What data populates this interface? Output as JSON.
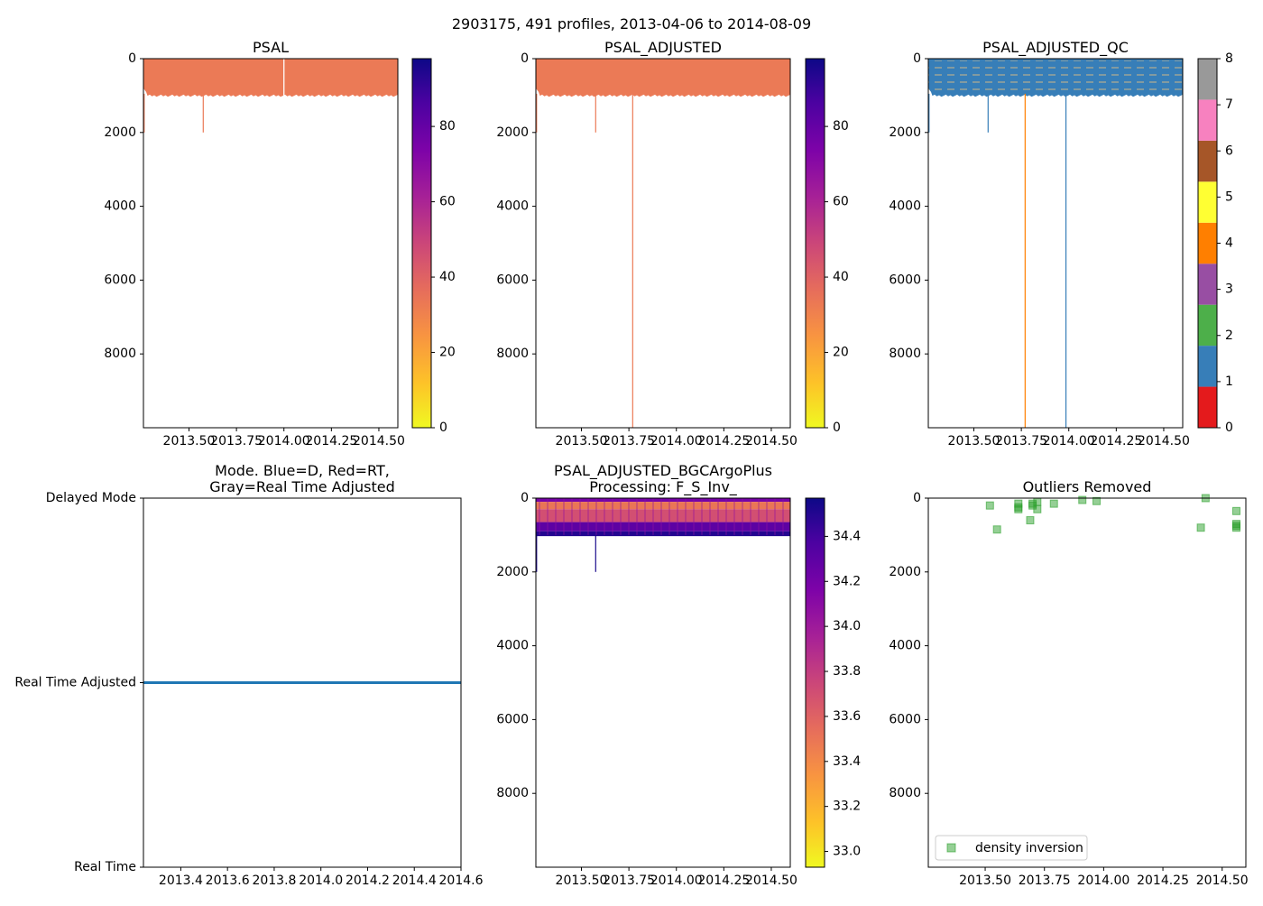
{
  "figure": {
    "suptitle": "2903175, 491 profiles, 2013-04-06 to 2014-08-09"
  },
  "colors": {
    "salmon": "#EB7A56",
    "qc_blue": "#377EB8",
    "qc_orange": "#FF7F00",
    "line_blue": "#1F77B4",
    "outlier_green": "#2CA02C",
    "bgc_navy": "#1A0A8C",
    "bgc_orange": "#F6913B",
    "bgc_purple": "#9512A1"
  },
  "chart_data": [
    {
      "id": "psal",
      "type": "heatmap",
      "title": "PSAL",
      "xlim": [
        2013.26,
        2014.6
      ],
      "ylim": [
        10000,
        0
      ],
      "y_inverted": true,
      "xticks": [
        2013.5,
        2013.75,
        2014.0,
        2014.25,
        2014.5
      ],
      "xtick_labels": [
        "2013.50",
        "2013.75",
        "2014.00",
        "2014.25",
        "2014.50"
      ],
      "yticks": [
        0,
        2000,
        4000,
        6000,
        8000
      ],
      "ytick_labels": [
        "0",
        "2000",
        "4000",
        "6000",
        "8000"
      ],
      "fill": {
        "x_start": 2013.26,
        "x_end": 2014.6,
        "depth_start": 0,
        "depth_end": 1000,
        "color_key": "salmon"
      },
      "spikes": [
        {
          "x": 2013.26,
          "depth_end": 2000,
          "color_key": "salmon"
        },
        {
          "x": 2013.575,
          "depth_end": 2000,
          "color_key": "salmon"
        }
      ],
      "gaps": [
        {
          "x": 2014.0,
          "depth_end": 1000
        }
      ],
      "colorbar": {
        "type": "continuous",
        "cmap": "plasma_r",
        "vmin": 0,
        "vmax": 98,
        "ticks": [
          0,
          20,
          40,
          60,
          80
        ],
        "tick_labels": [
          "0",
          "20",
          "40",
          "60",
          "80"
        ]
      }
    },
    {
      "id": "psal_adj",
      "type": "heatmap",
      "title": "PSAL_ADJUSTED",
      "xlim": [
        2013.26,
        2014.6
      ],
      "ylim": [
        10000,
        0
      ],
      "y_inverted": true,
      "xticks": [
        2013.5,
        2013.75,
        2014.0,
        2014.25,
        2014.5
      ],
      "xtick_labels": [
        "2013.50",
        "2013.75",
        "2014.00",
        "2014.25",
        "2014.50"
      ],
      "yticks": [
        0,
        2000,
        4000,
        6000,
        8000
      ],
      "ytick_labels": [
        "0",
        "2000",
        "4000",
        "6000",
        "8000"
      ],
      "fill": {
        "x_start": 2013.26,
        "x_end": 2014.6,
        "depth_start": 0,
        "depth_end": 1000,
        "color_key": "salmon"
      },
      "spikes": [
        {
          "x": 2013.26,
          "depth_end": 2000,
          "color_key": "salmon"
        },
        {
          "x": 2013.575,
          "depth_end": 2000,
          "color_key": "salmon"
        },
        {
          "x": 2013.77,
          "depth_end": 10000,
          "color_key": "salmon"
        }
      ],
      "gaps": [],
      "colorbar": {
        "type": "continuous",
        "cmap": "plasma_r",
        "vmin": 0,
        "vmax": 98,
        "ticks": [
          0,
          20,
          40,
          60,
          80
        ],
        "tick_labels": [
          "0",
          "20",
          "40",
          "60",
          "80"
        ]
      }
    },
    {
      "id": "psal_qc",
      "type": "heatmap",
      "title": "PSAL_ADJUSTED_QC",
      "xlim": [
        2013.26,
        2014.6
      ],
      "ylim": [
        10000,
        0
      ],
      "y_inverted": true,
      "xticks": [
        2013.5,
        2013.75,
        2014.0,
        2014.25,
        2014.5
      ],
      "xtick_labels": [
        "2013.50",
        "2013.75",
        "2014.00",
        "2014.25",
        "2014.50"
      ],
      "yticks": [
        0,
        2000,
        4000,
        6000,
        8000
      ],
      "ytick_labels": [
        "0",
        "2000",
        "4000",
        "6000",
        "8000"
      ],
      "fill": {
        "x_start": 2013.26,
        "x_end": 2014.6,
        "depth_start": 0,
        "depth_end": 1000,
        "color_key": "qc_blue"
      },
      "spikes": [
        {
          "x": 2013.26,
          "depth_end": 2000,
          "color_key": "qc_blue"
        },
        {
          "x": 2013.575,
          "depth_end": 2000,
          "color_key": "qc_blue"
        },
        {
          "x": 2013.77,
          "depth_end": 10000,
          "color_key": "qc_orange"
        },
        {
          "x": 2013.985,
          "depth_end": 10000,
          "color_key": "qc_blue"
        }
      ],
      "gaps": [],
      "colorbar": {
        "type": "categorical",
        "vmin": 0,
        "vmax": 8,
        "categories": [
          {
            "value": 0,
            "color": "#E41A1C"
          },
          {
            "value": 1,
            "color": "#377EB8"
          },
          {
            "value": 2,
            "color": "#4DAF4A"
          },
          {
            "value": 3,
            "color": "#984EA3"
          },
          {
            "value": 4,
            "color": "#FF7F00"
          },
          {
            "value": 5,
            "color": "#FFFF33"
          },
          {
            "value": 6,
            "color": "#A65628"
          },
          {
            "value": 7,
            "color": "#F781BF"
          },
          {
            "value": 8,
            "color": "#999999"
          }
        ],
        "ticks": [
          0,
          1,
          2,
          3,
          4,
          5,
          6,
          7,
          8
        ],
        "tick_labels": [
          "0",
          "1",
          "2",
          "3",
          "4",
          "5",
          "6",
          "7",
          "8"
        ]
      }
    },
    {
      "id": "mode",
      "type": "line",
      "title_lines": [
        "Mode. Blue=D, Red=RT,",
        "Gray=Real Time Adjusted"
      ],
      "xlim": [
        2013.24,
        2014.6
      ],
      "xticks": [
        2013.4,
        2013.6,
        2013.8,
        2014.0,
        2014.2,
        2014.4,
        2014.6
      ],
      "xtick_labels": [
        "2013.4",
        "2013.6",
        "2013.8",
        "2014.0",
        "2014.2",
        "2014.4",
        "2014.6"
      ],
      "ylim": [
        0,
        2
      ],
      "yticks": [
        0,
        1,
        2
      ],
      "ytick_labels": [
        "Real Time",
        "Real Time Adjusted",
        "Delayed Mode"
      ],
      "series": [
        {
          "name": "mode",
          "x": [
            2013.24,
            2014.6
          ],
          "y": [
            1,
            1
          ],
          "color_key": "line_blue"
        }
      ]
    },
    {
      "id": "bgc",
      "type": "heatmap",
      "title_lines": [
        "PSAL_ADJUSTED_BGCArgoPlus",
        "Processing: F_S_Inv_"
      ],
      "xlim": [
        2013.26,
        2014.6
      ],
      "ylim": [
        10000,
        0
      ],
      "y_inverted": true,
      "xticks": [
        2013.5,
        2013.75,
        2014.0,
        2014.25,
        2014.5
      ],
      "xtick_labels": [
        "2013.50",
        "2013.75",
        "2014.00",
        "2014.25",
        "2014.50"
      ],
      "yticks": [
        0,
        2000,
        4000,
        6000,
        8000
      ],
      "ytick_labels": [
        "0",
        "2000",
        "4000",
        "6000",
        "8000"
      ],
      "layers": [
        {
          "depth_start": 0,
          "depth_end": 100,
          "value": 34.2
        },
        {
          "depth_start": 100,
          "depth_end": 300,
          "value": 33.5
        },
        {
          "depth_start": 300,
          "depth_end": 650,
          "value": 33.7
        },
        {
          "depth_start": 650,
          "depth_end": 900,
          "value": 34.3
        },
        {
          "depth_start": 900,
          "depth_end": 1030,
          "value": 34.5
        }
      ],
      "spikes": [
        {
          "x": 2013.26,
          "depth_end": 2000,
          "color_key": "bgc_navy"
        },
        {
          "x": 2013.575,
          "depth_end": 2000,
          "color_key": "bgc_navy"
        }
      ],
      "colorbar": {
        "type": "continuous",
        "cmap": "plasma_r",
        "vmin": 32.93,
        "vmax": 34.57,
        "ticks": [
          33.0,
          33.2,
          33.4,
          33.6,
          33.8,
          34.0,
          34.2,
          34.4
        ],
        "tick_labels": [
          "33.0",
          "33.2",
          "33.4",
          "33.6",
          "33.8",
          "34.0",
          "34.2",
          "34.4"
        ]
      }
    },
    {
      "id": "outliers",
      "type": "scatter",
      "title": "Outliers Removed",
      "xlim": [
        2013.26,
        2014.6
      ],
      "ylim": [
        10000,
        0
      ],
      "y_inverted": true,
      "xticks": [
        2013.5,
        2013.75,
        2014.0,
        2014.25,
        2014.5
      ],
      "xtick_labels": [
        "2013.50",
        "2013.75",
        "2014.00",
        "2014.25",
        "2014.50"
      ],
      "yticks": [
        0,
        2000,
        4000,
        6000,
        8000
      ],
      "ytick_labels": [
        "0",
        "2000",
        "4000",
        "6000",
        "8000"
      ],
      "series": [
        {
          "name": "density inversion",
          "color_key": "outlier_green",
          "points": [
            [
              2013.52,
              200
            ],
            [
              2013.55,
              850
            ],
            [
              2013.64,
              150
            ],
            [
              2013.64,
              250
            ],
            [
              2013.64,
              300
            ],
            [
              2013.69,
              600
            ],
            [
              2013.7,
              150
            ],
            [
              2013.7,
              200
            ],
            [
              2013.72,
              100
            ],
            [
              2013.72,
              300
            ],
            [
              2013.79,
              150
            ],
            [
              2013.91,
              50
            ],
            [
              2013.97,
              80
            ],
            [
              2014.43,
              0
            ],
            [
              2014.41,
              800
            ],
            [
              2014.56,
              350
            ],
            [
              2014.56,
              700
            ],
            [
              2014.56,
              750
            ],
            [
              2014.56,
              800
            ]
          ]
        }
      ],
      "legend": {
        "location": "lower-left"
      }
    }
  ]
}
